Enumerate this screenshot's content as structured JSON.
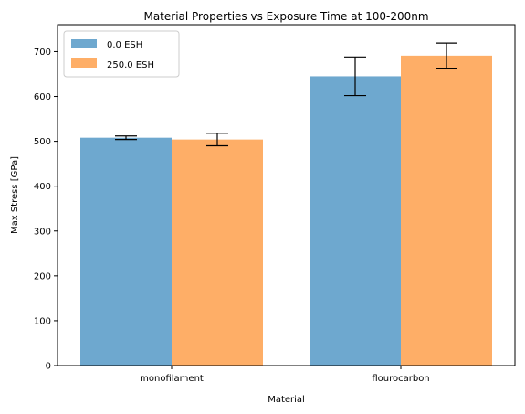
{
  "chart_data": {
    "type": "bar",
    "title": "Material Properties vs Exposure Time at 100-200nm",
    "xlabel": "Material",
    "ylabel": "Max Stress [GPa]",
    "categories": [
      "monofilament",
      "flourocarbon"
    ],
    "series": [
      {
        "name": "0.0 ESH",
        "color": "#4a92c3",
        "values": [
          508,
          645
        ],
        "errors": [
          4,
          43
        ]
      },
      {
        "name": "250.0 ESH",
        "color": "#fe9a41",
        "values": [
          504,
          691
        ],
        "errors": [
          14,
          28
        ]
      }
    ],
    "ylim": [
      0,
      760
    ],
    "yticks": [
      0,
      100,
      200,
      300,
      400,
      500,
      600,
      700
    ],
    "legend": "top-left",
    "grid": false
  }
}
